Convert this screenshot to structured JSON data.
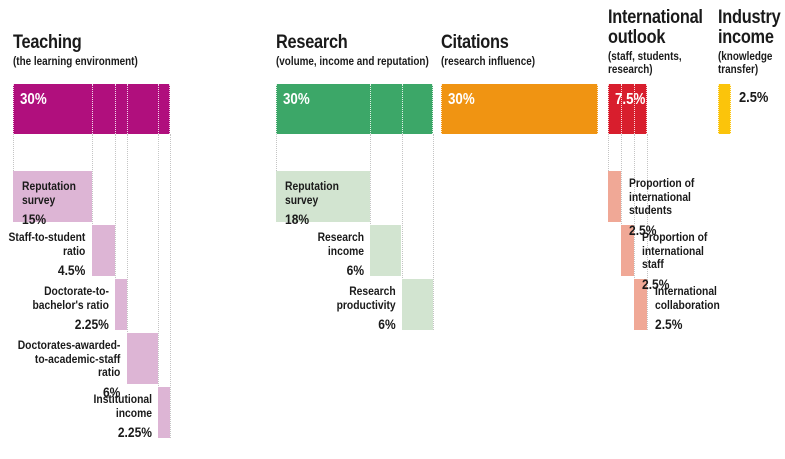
{
  "chart_data": {
    "type": "bar",
    "subtype": "weighted-breakdown-waterfall",
    "unit": "%",
    "grid": "dotted-vertical",
    "legend_position": "none",
    "colors": {
      "text": "#1a1a1a",
      "grid_line": "#c4c4c4",
      "in_bar_divider": "#ffffff",
      "background": "#ffffff"
    },
    "categories": [
      {
        "title": "Teaching",
        "subtitle": "(the learning environment)",
        "total_label": "30%",
        "total_value": 30,
        "color": "#b00f7d",
        "light_color": "#ddb5d5",
        "total_label_pos": "inside",
        "sub": [
          {
            "label": "Reputation\nsurvey",
            "pct_label": "15%",
            "value": 15,
            "label_pos": "inside"
          },
          {
            "label": "Staff-to-student\nratio",
            "pct_label": "4.5%",
            "value": 4.5,
            "label_pos": "left"
          },
          {
            "label": "Doctorate-to-\nbachelor's ratio",
            "pct_label": "2.25%",
            "value": 2.25,
            "label_pos": "left"
          },
          {
            "label": "Doctorates-awarded-\nto-academic-staff\nratio",
            "pct_label": "6%",
            "value": 6,
            "label_pos": "left"
          },
          {
            "label": "Institutional\nincome",
            "pct_label": "2.25%",
            "value": 2.25,
            "label_pos": "left"
          }
        ]
      },
      {
        "title": "Research",
        "subtitle": "(volume, income and reputation)",
        "total_label": "30%",
        "total_value": 30,
        "color": "#3ca768",
        "light_color": "#d2e4d0",
        "total_label_pos": "inside",
        "sub": [
          {
            "label": "Reputation\nsurvey",
            "pct_label": "18%",
            "value": 18,
            "label_pos": "inside"
          },
          {
            "label": "Research\nincome",
            "pct_label": "6%",
            "value": 6,
            "label_pos": "left"
          },
          {
            "label": "Research\nproductivity",
            "pct_label": "6%",
            "value": 6,
            "label_pos": "left"
          }
        ]
      },
      {
        "title": "Citations",
        "subtitle": "(research influence)",
        "total_label": "30%",
        "total_value": 30,
        "color": "#f09412",
        "light_color": "#f9d9a8",
        "total_label_pos": "inside",
        "sub": []
      },
      {
        "title": "International\noutlook",
        "subtitle": "(staff, students,\nresearch)",
        "total_label": "7.5%",
        "total_value": 7.5,
        "color": "#d81e2d",
        "light_color": "#f0a896",
        "total_label_pos": "inside",
        "sub": [
          {
            "label": "Proportion of\ninternational\nstudents",
            "pct_label": "2.5%",
            "value": 2.5,
            "label_pos": "right"
          },
          {
            "label": "Proportion of\ninternational\nstaff",
            "pct_label": "2.5%",
            "value": 2.5,
            "label_pos": "right"
          },
          {
            "label": "International\ncollaboration",
            "pct_label": "2.5%",
            "value": 2.5,
            "label_pos": "right"
          }
        ]
      },
      {
        "title": "Industry\nincome",
        "subtitle": "(knowledge\ntransfer)",
        "total_label": "2.5%",
        "total_value": 2.5,
        "color": "#fbc40b",
        "light_color": "#fde49a",
        "total_label_pos": "right",
        "sub": []
      }
    ]
  }
}
